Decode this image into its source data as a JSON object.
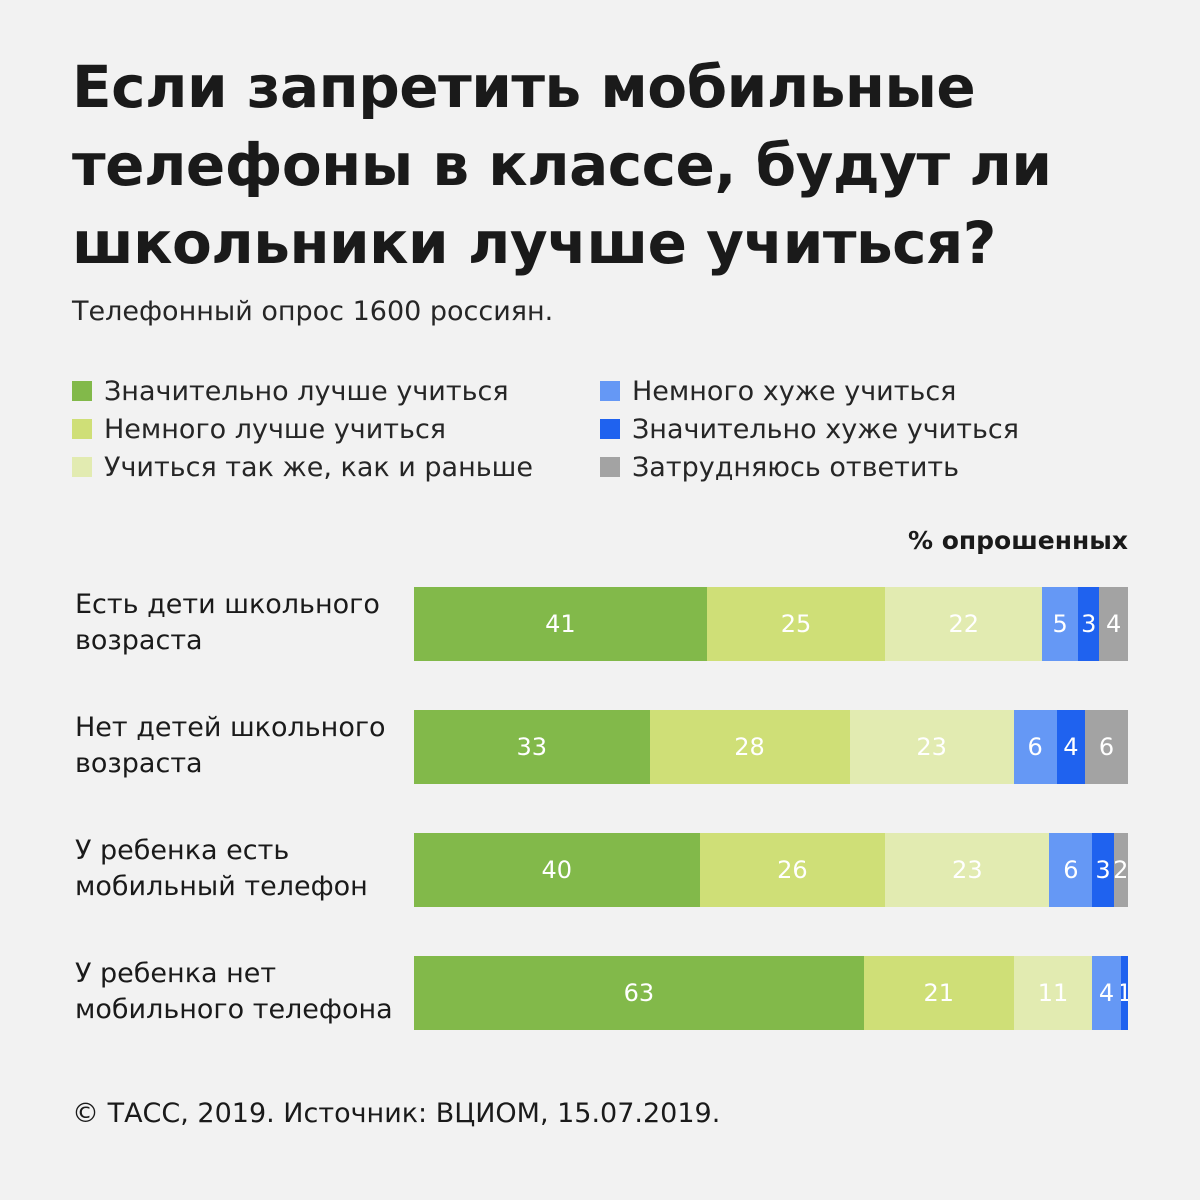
{
  "header": {
    "title": "Если запретить мобильные телефоны в классе, будут ли школьники лучше учиться?",
    "subtitle": "Телефонный опрос 1600 россиян."
  },
  "legend": [
    {
      "label": "Значительно лучше учиться",
      "color": "#82b94a"
    },
    {
      "label": "Немного лучше учиться",
      "color": "#cfdf77"
    },
    {
      "label": "Учиться так же, как и раньше",
      "color": "#e2ebb1"
    },
    {
      "label": "Немного хуже учиться",
      "color": "#6598f5"
    },
    {
      "label": "Значительно хуже учиться",
      "color": "#1f62ef"
    },
    {
      "label": "Затрудняюсь ответить",
      "color": "#a3a3a3"
    }
  ],
  "unit_label": "% опрошенных",
  "chart_data": {
    "type": "bar",
    "orientation": "horizontal",
    "stacked": true,
    "title": "Если запретить мобильные телефоны в классе, будут ли школьники лучше учиться?",
    "unit": "% опрошенных",
    "categories": [
      "Есть дети школьного возраста",
      "Нет детей школьного возраста",
      "У ребенка есть мобильный телефон",
      "У ребенка нет мобильного телефона"
    ],
    "series": [
      {
        "name": "Значительно лучше учиться",
        "color": "#82b94a",
        "values": [
          41,
          33,
          40,
          63
        ]
      },
      {
        "name": "Немного лучше учиться",
        "color": "#cfdf77",
        "values": [
          25,
          28,
          26,
          21
        ]
      },
      {
        "name": "Учиться так же, как и раньше",
        "color": "#e2ebb1",
        "values": [
          22,
          23,
          23,
          11
        ]
      },
      {
        "name": "Немного хуже учиться",
        "color": "#6598f5",
        "values": [
          5,
          6,
          6,
          4
        ]
      },
      {
        "name": "Значительно хуже учиться",
        "color": "#1f62ef",
        "values": [
          3,
          4,
          3,
          1
        ]
      },
      {
        "name": "Затрудняюсь ответить",
        "color": "#a3a3a3",
        "values": [
          4,
          6,
          2,
          0
        ]
      }
    ],
    "xlim": [
      0,
      100
    ],
    "grid": false,
    "legend_position": "top"
  },
  "footer": {
    "source": "© ТАСС, 2019. Источник: ВЦИОМ, 15.07.2019."
  }
}
